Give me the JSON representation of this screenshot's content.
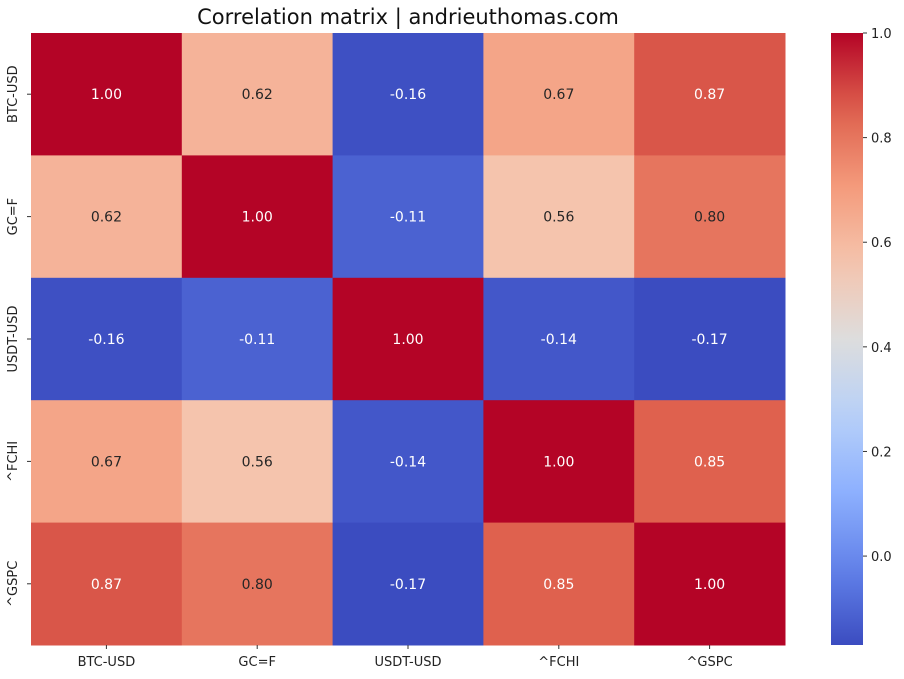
{
  "chart_data": {
    "type": "heatmap",
    "title": "Correlation matrix | andrieuthomas.com",
    "xlabel": "",
    "ylabel": "",
    "x_categories": [
      "BTC-USD",
      "GC=F",
      "USDT-USD",
      "^FCHI",
      "^GSPC"
    ],
    "y_categories": [
      "BTC-USD",
      "GC=F",
      "USDT-USD",
      "^FCHI",
      "^GSPC"
    ],
    "values": [
      [
        1.0,
        0.62,
        -0.16,
        0.67,
        0.87
      ],
      [
        0.62,
        1.0,
        -0.11,
        0.56,
        0.8
      ],
      [
        -0.16,
        -0.11,
        1.0,
        -0.14,
        -0.17
      ],
      [
        0.67,
        0.56,
        -0.14,
        1.0,
        0.85
      ],
      [
        0.87,
        0.8,
        -0.17,
        0.85,
        1.0
      ]
    ],
    "value_labels": [
      [
        "1.00",
        "0.62",
        "-0.16",
        "0.67",
        "0.87"
      ],
      [
        "0.62",
        "1.00",
        "-0.11",
        "0.56",
        "0.80"
      ],
      [
        "-0.16",
        "-0.11",
        "1.00",
        "-0.14",
        "-0.17"
      ],
      [
        "0.67",
        "0.56",
        "-0.14",
        "1.00",
        "0.85"
      ],
      [
        "0.87",
        "0.80",
        "-0.17",
        "0.85",
        "1.00"
      ]
    ],
    "colormap": "coolwarm",
    "vmin": -0.17,
    "vmax": 1.0,
    "colorbar": {
      "ticks": [
        0.0,
        0.2,
        0.4,
        0.6,
        0.8,
        1.0
      ],
      "tick_labels": [
        "0.0",
        "0.2",
        "0.4",
        "0.6",
        "0.8",
        "1.0"
      ],
      "placement": "right"
    },
    "grid": false
  }
}
